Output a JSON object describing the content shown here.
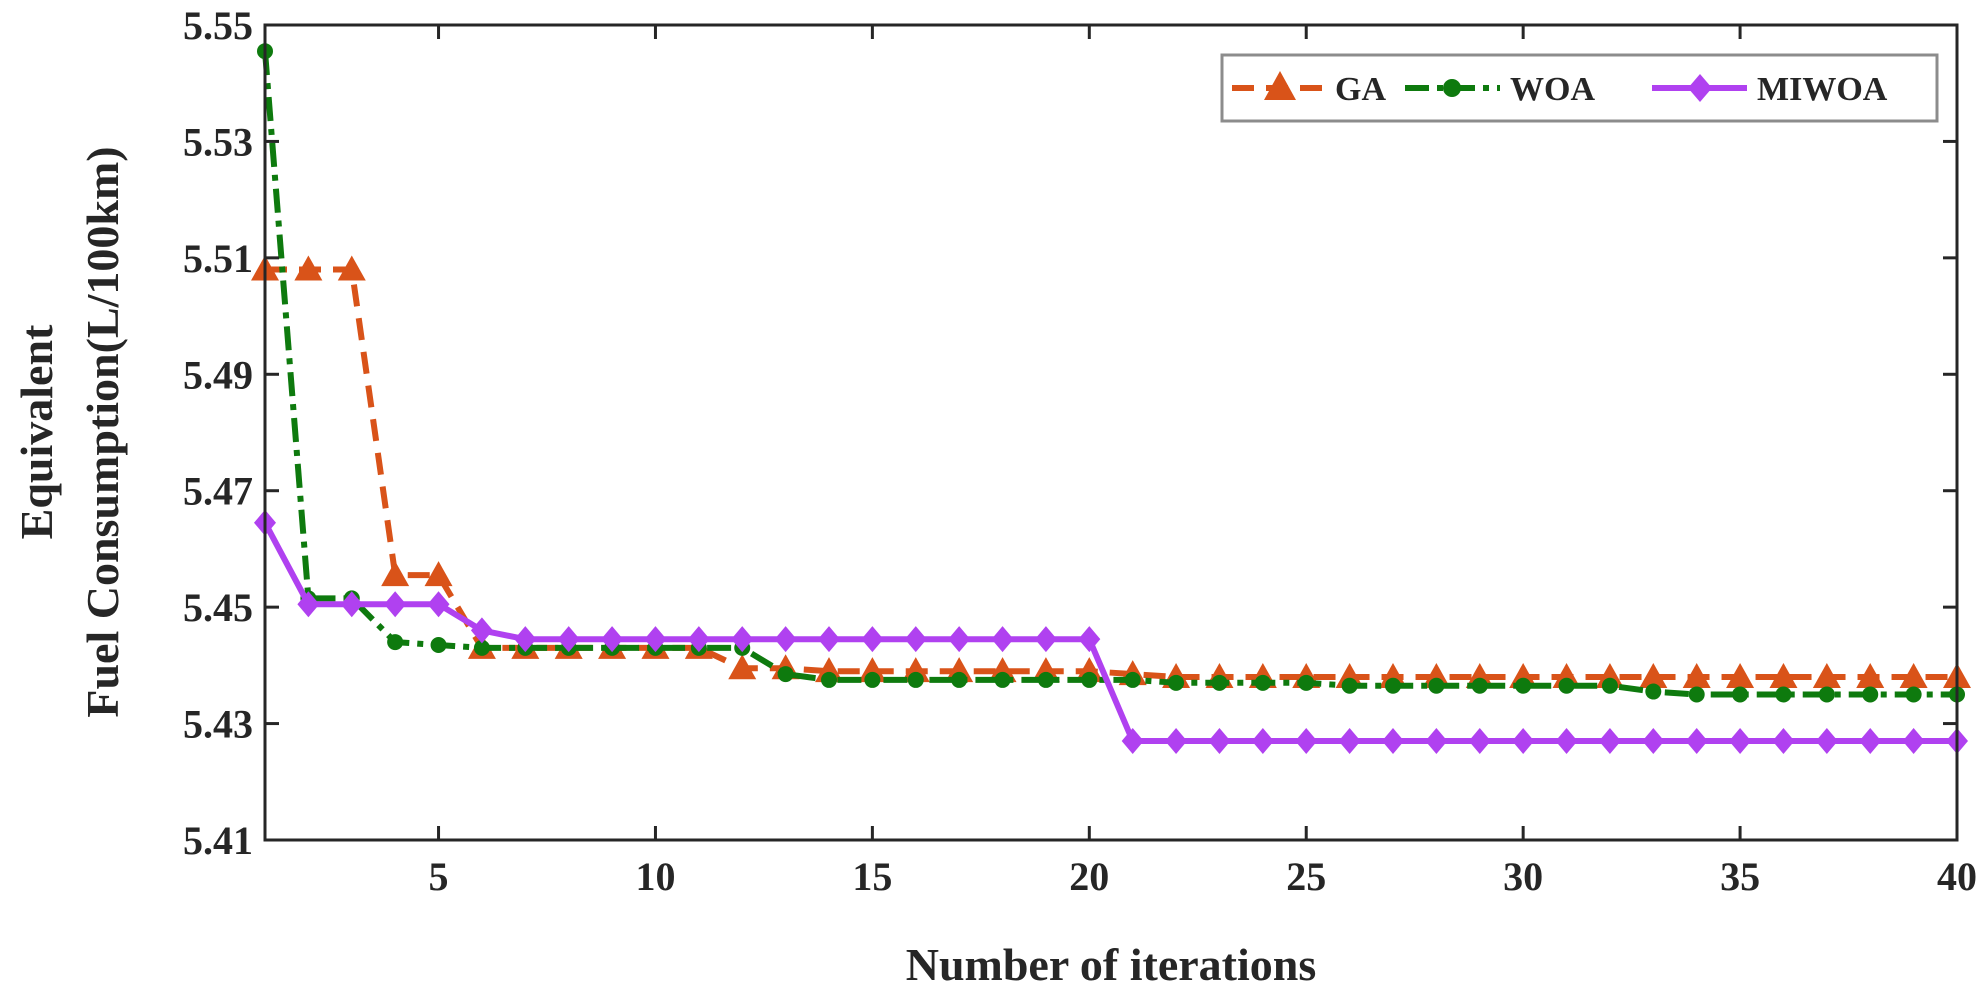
{
  "chart_data": {
    "type": "line",
    "title": "",
    "xlabel": "Number of iterations",
    "ylabel_lines": [
      "Equivalent",
      "Fuel Consumption(L/100km)"
    ],
    "xlim": [
      1,
      40
    ],
    "ylim": [
      5.41,
      5.55
    ],
    "xticks": [
      5,
      10,
      15,
      20,
      25,
      30,
      35,
      40
    ],
    "yticks": [
      5.41,
      5.43,
      5.45,
      5.47,
      5.49,
      5.51,
      5.53,
      5.55
    ],
    "ytick_labels": [
      "5.41",
      "5.43",
      "5.45",
      "5.47",
      "5.49",
      "5.51",
      "5.53",
      "5.55"
    ],
    "xtick_labels": [
      "5",
      "10",
      "15",
      "20",
      "25",
      "30",
      "35",
      "40"
    ],
    "legend_position": "top-right",
    "grid": false,
    "x": [
      1,
      2,
      3,
      4,
      5,
      6,
      7,
      8,
      9,
      10,
      11,
      12,
      13,
      14,
      15,
      16,
      17,
      18,
      19,
      20,
      21,
      22,
      23,
      24,
      25,
      26,
      27,
      28,
      29,
      30,
      31,
      32,
      33,
      34,
      35,
      36,
      37,
      38,
      39,
      40
    ],
    "series": [
      {
        "name": "GA",
        "color": "#D95319",
        "dash": "dashed",
        "marker": "triangle",
        "values": [
          5.508,
          5.508,
          5.508,
          5.4555,
          5.4555,
          5.443,
          5.443,
          5.443,
          5.443,
          5.443,
          5.443,
          5.4395,
          5.4395,
          5.439,
          5.439,
          5.439,
          5.439,
          5.439,
          5.439,
          5.439,
          5.4385,
          5.438,
          5.438,
          5.438,
          5.438,
          5.438,
          5.438,
          5.438,
          5.438,
          5.438,
          5.438,
          5.438,
          5.438,
          5.438,
          5.438,
          5.438,
          5.438,
          5.438,
          5.438,
          5.438
        ]
      },
      {
        "name": "WOA",
        "color": "#0E7A0E",
        "dash": "dashdot",
        "marker": "circle",
        "values": [
          5.5455,
          5.4515,
          5.4515,
          5.444,
          5.4435,
          5.443,
          5.443,
          5.443,
          5.443,
          5.443,
          5.443,
          5.443,
          5.4385,
          5.4375,
          5.4375,
          5.4375,
          5.4375,
          5.4375,
          5.4375,
          5.4375,
          5.4375,
          5.437,
          5.437,
          5.437,
          5.437,
          5.4365,
          5.4365,
          5.4365,
          5.4365,
          5.4365,
          5.4365,
          5.4365,
          5.4355,
          5.435,
          5.435,
          5.435,
          5.435,
          5.435,
          5.435,
          5.435
        ]
      },
      {
        "name": "MIWOA",
        "color": "#B041F0",
        "dash": "solid",
        "marker": "diamond",
        "values": [
          5.4645,
          5.4505,
          5.4505,
          5.4505,
          5.4505,
          5.446,
          5.4445,
          5.4445,
          5.4445,
          5.4445,
          5.4445,
          5.4445,
          5.4445,
          5.4445,
          5.4445,
          5.4445,
          5.4445,
          5.4445,
          5.4445,
          5.4445,
          5.427,
          5.427,
          5.427,
          5.427,
          5.427,
          5.427,
          5.427,
          5.427,
          5.427,
          5.427,
          5.427,
          5.427,
          5.427,
          5.427,
          5.427,
          5.427,
          5.427,
          5.427,
          5.427,
          5.427
        ]
      }
    ]
  }
}
